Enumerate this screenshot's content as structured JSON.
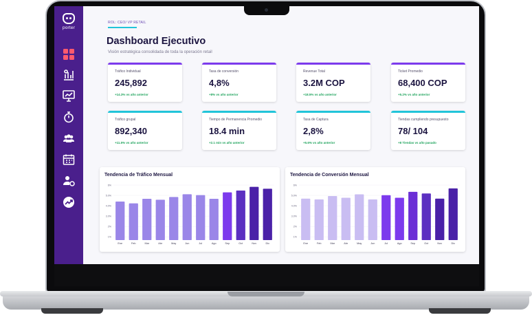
{
  "app": {
    "logo_text": "porter"
  },
  "breadcrumb": "ROL: CEO/ VP RETAIL",
  "header": {
    "title": "Dashboard Ejecutivo",
    "subtitle": "Visión estratégica consolidada de toda la operación retail"
  },
  "sidebar": {
    "items": [
      {
        "icon": "grid-icon",
        "active": true
      },
      {
        "icon": "bar-chart-icon"
      },
      {
        "icon": "monitor-chart-icon"
      },
      {
        "icon": "stopwatch-icon"
      },
      {
        "icon": "users-group-icon"
      },
      {
        "icon": "calendar-icon"
      },
      {
        "icon": "user-settings-icon"
      },
      {
        "icon": "trend-up-icon"
      }
    ]
  },
  "colors": {
    "sidebar": "#4a1f8c",
    "accent_purple": "#7c3aed",
    "accent_cyan": "#21c4d9",
    "positive": "#1ea35c"
  },
  "kpis_row1": [
    {
      "label": "Tráfico Individual",
      "value": "245,892",
      "delta": "+14.3% vs año anterior"
    },
    {
      "label": "Tasa de conversión",
      "value": "4,8%",
      "delta": "+8% vs año anterior"
    },
    {
      "label": "Revenue Total",
      "value": "3.2M COP",
      "delta": "+18.5% vs año anterior"
    },
    {
      "label": "Ticket Promedio",
      "value": "68,400 COP",
      "delta": "+5.2% vs año anterior"
    }
  ],
  "kpis_row2": [
    {
      "label": "Tráfico grupal",
      "value": "892,340",
      "delta": "+11.5% vs año anterior"
    },
    {
      "label": "Tiempo de Permanencia Promedio",
      "value": "18.4 min",
      "delta": "+2.1 min vs año anterior"
    },
    {
      "label": "Tasa de Captura",
      "value": "2,8%",
      "delta": "+5.6% vs año anterior"
    },
    {
      "label": "Tiendas cumpliendo presupuesto",
      "value": "78/ 104",
      "delta": "+8 Tiendas vs año pasado"
    }
  ],
  "chart_data": [
    {
      "type": "bar",
      "title": "Tendencia de Tráfico Mensual",
      "categories": [
        "Ene",
        "Feb",
        "Mar",
        "Abr",
        "May",
        "Jun",
        "Jul",
        "Ago",
        "Sep",
        "Oct",
        "Nov",
        "Dic"
      ],
      "values": [
        4.2,
        4.0,
        4.5,
        4.4,
        4.7,
        5.0,
        4.9,
        4.5,
        5.2,
        5.4,
        5.8,
        5.6
      ],
      "yticks": [
        "6%",
        "5.0%",
        "4.0%",
        "3.0%",
        "2%",
        "1%"
      ],
      "ylim": [
        0,
        6
      ],
      "bar_colors": [
        "#9a86e8",
        "#9a86e8",
        "#9a86e8",
        "#9a86e8",
        "#9a86e8",
        "#9a86e8",
        "#9a86e8",
        "#9a86e8",
        "#7c3aed",
        "#5b2fc1",
        "#4a21a8",
        "#4a21a8"
      ]
    },
    {
      "type": "bar",
      "title": "Tendencia de Conversión Mensual",
      "categories": [
        "Ene",
        "Feb",
        "Mar",
        "Abr",
        "May",
        "Jun",
        "Jul",
        "Ago",
        "Sep",
        "Oct",
        "Nov",
        "Dic"
      ],
      "values": [
        4.9,
        4.8,
        5.2,
        5.0,
        5.4,
        4.8,
        5.3,
        5.0,
        5.7,
        5.5,
        4.9,
        6.1
      ],
      "yticks": [
        "6%",
        "5.0%",
        "4.0%",
        "3.0%",
        "2%",
        "1%"
      ],
      "ylim": [
        0,
        6.5
      ],
      "bar_colors": [
        "#c9bdf2",
        "#c9bdf2",
        "#c9bdf2",
        "#c9bdf2",
        "#c9bdf2",
        "#c9bdf2",
        "#7c3aed",
        "#7c3aed",
        "#6b2fd6",
        "#5b2fc1",
        "#4a21a8",
        "#4a21a8"
      ]
    }
  ]
}
